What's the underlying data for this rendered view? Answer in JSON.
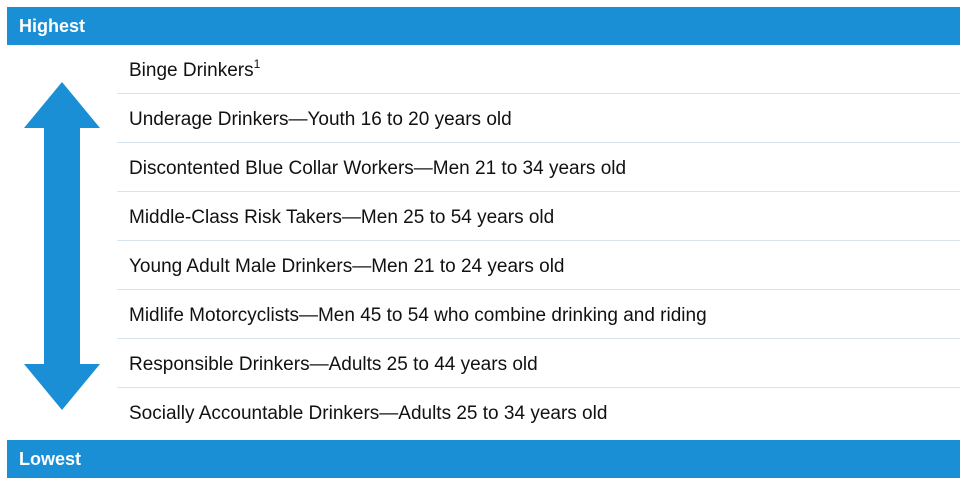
{
  "header": {
    "title": "Highest"
  },
  "footer": {
    "title": "Lowest"
  },
  "rows": [
    {
      "text": "Binge Drinkers",
      "sup": "1"
    },
    {
      "text": "Underage Drinkers—Youth 16 to 20 years old"
    },
    {
      "text": "Discontented Blue Collar Workers—Men 21 to 34 years old"
    },
    {
      "text": "Middle-Class Risk Takers—Men 25 to 54 years old"
    },
    {
      "text": "Young Adult Male Drinkers—Men 21 to 24 years old"
    },
    {
      "text": "Midlife Motorcyclists—Men 45 to 54 who combine drinking and riding"
    },
    {
      "text": "Responsible Drinkers—Adults 25 to 44 years old"
    },
    {
      "text": "Socially Accountable Drinkers—Adults 25 to 34 years old"
    }
  ]
}
